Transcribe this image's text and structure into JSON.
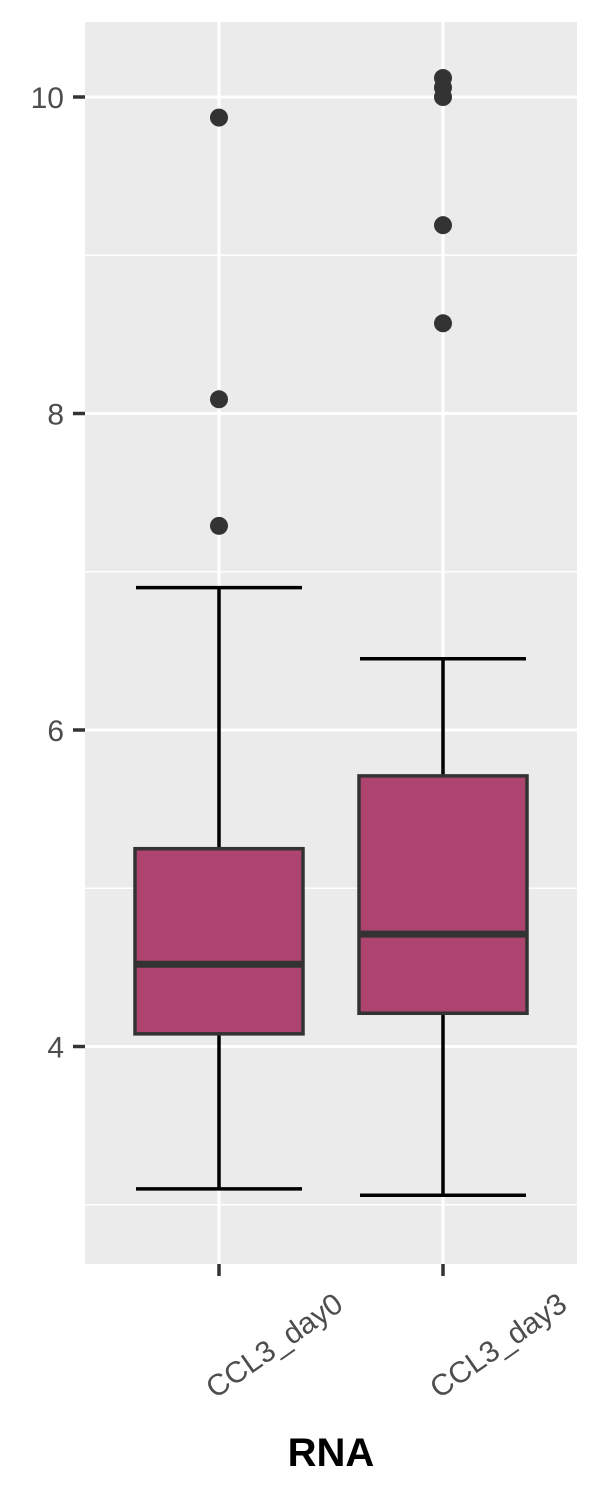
{
  "chart_data": {
    "type": "boxplot",
    "title": "",
    "xlabel": "RNA",
    "ylabel": "",
    "categories": [
      "CCL3_day0",
      "CCL3_day3"
    ],
    "ylim": [
      2.6,
      10.5
    ],
    "yticks": [
      4,
      6,
      8,
      10
    ],
    "grid": true,
    "legend": "none",
    "boxes": [
      {
        "category": "CCL3_day0",
        "whisker_low": 3.1,
        "q1": 4.08,
        "median": 4.52,
        "q3": 5.25,
        "whisker_high": 6.9,
        "outliers": [
          7.29,
          8.09,
          9.87
        ]
      },
      {
        "category": "CCL3_day3",
        "whisker_low": 3.06,
        "q1": 4.21,
        "median": 4.71,
        "q3": 5.71,
        "whisker_high": 6.45,
        "outliers": [
          8.57,
          9.19,
          10.0,
          10.06,
          10.12
        ]
      }
    ],
    "colors": {
      "panel": "#ebebeb",
      "grid": "#ffffff",
      "box_fill": "#ad446f",
      "box_outline": "#333333",
      "whisker": "#000000",
      "outlier": "#333333",
      "tick_mark": "#333333"
    }
  }
}
